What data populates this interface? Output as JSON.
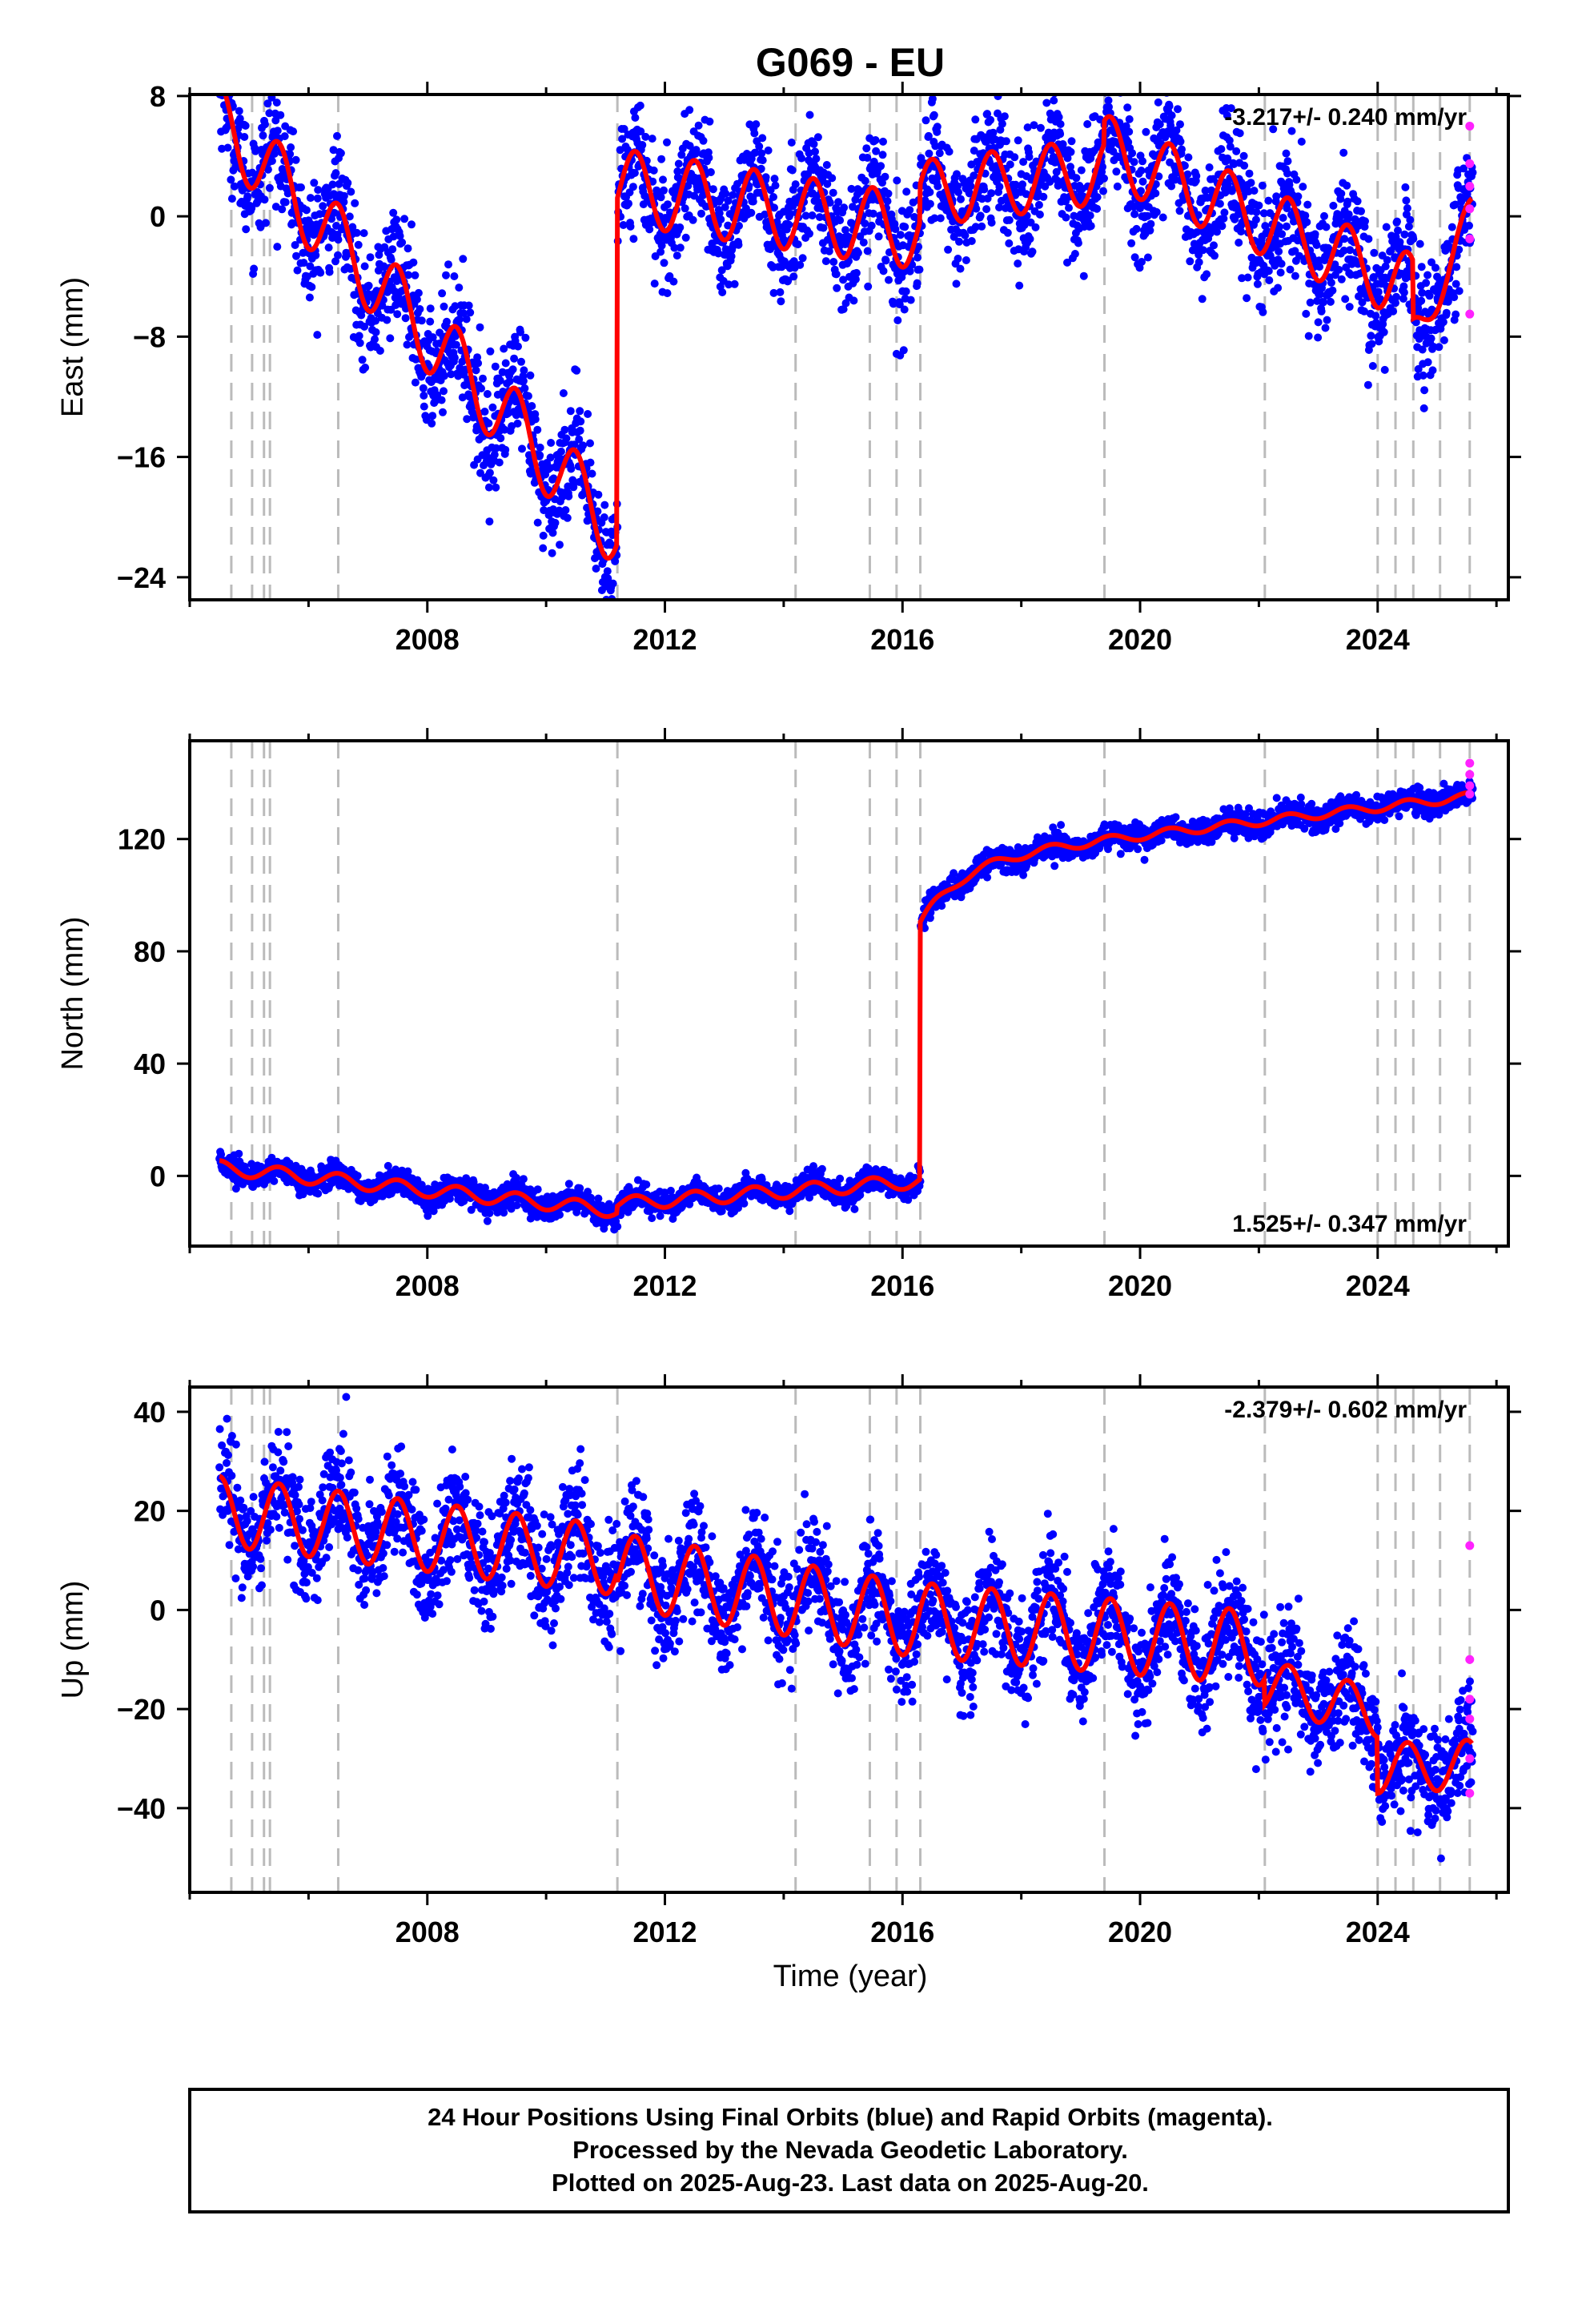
{
  "title": "G069 - EU",
  "x_axis_label": "Time (year)",
  "footer": {
    "line1": "24 Hour Positions Using Final Orbits (blue) and Rapid Orbits (magenta).",
    "line2": "Processed by the Nevada Geodetic Laboratory.",
    "line3": "Plotted on 2025-Aug-23. Last data on 2025-Aug-20."
  },
  "colors": {
    "final": "#0000ff",
    "rapid": "#ff22ff",
    "model": "#ff0000",
    "events": "#bbbbbb"
  },
  "chart_data": [
    {
      "type": "scatter",
      "ylabel": "East (mm)",
      "rate": "-3.217+/- 0.240 mm/yr",
      "rate_position": "top-right",
      "xlim": [
        2004.0,
        2026.2
      ],
      "ylim": [
        -25.5,
        8.1
      ],
      "xticks": [
        2008,
        2012,
        2016,
        2020,
        2024
      ],
      "yticks": [
        -24,
        -16,
        -8,
        0,
        8
      ],
      "event_lines": [
        2004.7,
        2005.05,
        2005.25,
        2005.35,
        2006.5,
        2011.2,
        2014.2,
        2015.45,
        2015.9,
        2016.3,
        2019.4,
        2022.1,
        2024.0,
        2024.3,
        2024.6,
        2025.05,
        2025.55
      ],
      "model": {
        "segments": [
          {
            "x0": 2004.5,
            "x1": 2011.2,
            "y0": 6.5,
            "trend": -4.1,
            "amp": 2.5
          },
          {
            "x0": 2011.2,
            "x1": 2016.3,
            "y0": 2.0,
            "trend": -0.6,
            "amp": 2.5
          },
          {
            "x0": 2016.3,
            "x1": 2019.4,
            "y0": 1.5,
            "trend": 0.5,
            "amp": 2.2
          },
          {
            "x0": 2019.4,
            "x1": 2024.6,
            "y0": 4.5,
            "trend": -1.8,
            "amp": 2.3
          },
          {
            "x0": 2024.6,
            "x1": 2025.6,
            "y0": -8.0,
            "trend": 8.0,
            "amp": 1.5
          }
        ],
        "noise": 2.0
      },
      "rapid_points": [
        [
          2025.55,
          6.0
        ],
        [
          2025.55,
          3.5
        ],
        [
          2025.55,
          2.0
        ],
        [
          2025.55,
          0.5
        ],
        [
          2025.55,
          -1.5
        ],
        [
          2025.55,
          -6.5
        ]
      ]
    },
    {
      "type": "scatter",
      "ylabel": "North (mm)",
      "rate": "1.525+/- 0.347 mm/yr",
      "rate_position": "bottom-right",
      "xlim": [
        2004.0,
        2026.2
      ],
      "ylim": [
        -25.0,
        155.0
      ],
      "xticks": [
        2008,
        2012,
        2016,
        2020,
        2024
      ],
      "yticks": [
        0,
        40,
        80,
        120
      ],
      "event_lines": [
        2004.7,
        2005.05,
        2005.25,
        2005.35,
        2006.5,
        2011.2,
        2014.2,
        2015.45,
        2015.9,
        2016.3,
        2019.4,
        2022.1,
        2024.0,
        2024.3,
        2024.6,
        2025.05,
        2025.55
      ],
      "model": {
        "segments": [
          {
            "x0": 2004.5,
            "x1": 2011.2,
            "y0": 3.0,
            "trend": -2.3,
            "amp": 2.5
          },
          {
            "x0": 2011.2,
            "x1": 2016.3,
            "y0": -10.0,
            "trend": 1.6,
            "amp": 2.5
          },
          {
            "x0": 2016.3,
            "x1": 2025.6,
            "y0": 90.0,
            "trend": 2.5,
            "amp": 1.5,
            "postseismic": {
              "amp": 22.0,
              "tau": 0.7
            }
          }
        ],
        "noise": 2.2
      },
      "rapid_points": [
        [
          2025.55,
          147.0
        ],
        [
          2025.55,
          143.0
        ],
        [
          2025.55,
          139.0
        ],
        [
          2025.55,
          136.0
        ]
      ]
    },
    {
      "type": "scatter",
      "ylabel": "Up (mm)",
      "rate": "-2.379+/- 0.602 mm/yr",
      "rate_position": "top-right",
      "xlim": [
        2004.0,
        2026.2
      ],
      "ylim": [
        -57.0,
        45.0
      ],
      "xticks": [
        2008,
        2012,
        2016,
        2020,
        2024
      ],
      "yticks": [
        -40,
        -20,
        0,
        20,
        40
      ],
      "event_lines": [
        2004.7,
        2005.05,
        2005.25,
        2005.35,
        2006.5,
        2011.2,
        2014.2,
        2015.45,
        2015.9,
        2016.3,
        2019.4,
        2022.1,
        2024.0,
        2024.3,
        2024.6,
        2025.05,
        2025.55
      ],
      "model": {
        "segments": [
          {
            "x0": 2004.5,
            "x1": 2011.2,
            "y0": 20.0,
            "trend": -1.5,
            "amp": 7.0
          },
          {
            "x0": 2011.2,
            "x1": 2016.3,
            "y0": 8.0,
            "trend": -2.0,
            "amp": 7.5
          },
          {
            "x0": 2016.3,
            "x1": 2022.1,
            "y0": -2.0,
            "trend": -1.0,
            "amp": 7.5
          },
          {
            "x0": 2022.1,
            "x1": 2024.0,
            "y0": -15.0,
            "trend": -3.0,
            "amp": 5.0
          },
          {
            "x0": 2024.0,
            "x1": 2025.6,
            "y0": -32.0,
            "trend": 0.5,
            "amp": 5.0
          }
        ],
        "noise": 5.5
      },
      "rapid_points": [
        [
          2025.55,
          13.0
        ],
        [
          2025.55,
          -10.0
        ],
        [
          2025.55,
          -18.0
        ],
        [
          2025.55,
          -22.0
        ],
        [
          2025.55,
          -30.0
        ],
        [
          2025.55,
          -37.0
        ]
      ]
    }
  ]
}
